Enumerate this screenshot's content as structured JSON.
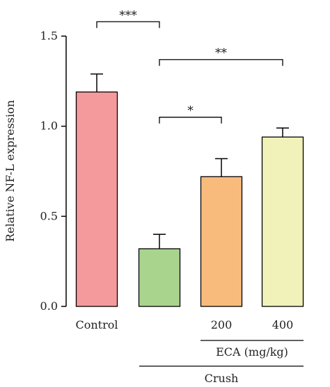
{
  "chart_data": {
    "type": "bar",
    "ylabel": "Relative NF-L expression",
    "ylim": [
      0,
      1.5
    ],
    "yticks": [
      "0.0",
      "0.5",
      "1.0",
      "1.5"
    ],
    "yticks_values": [
      0,
      0.5,
      1.0,
      1.5
    ],
    "categories": [
      "Control",
      "",
      "200",
      "400"
    ],
    "values": [
      1.19,
      0.32,
      0.72,
      0.94
    ],
    "errors": [
      0.1,
      0.08,
      0.1,
      0.05
    ],
    "colors": [
      "#f49a9c",
      "#a9d48e",
      "#f9bb7b",
      "#f1f2b9"
    ],
    "significance": [
      {
        "from": 0,
        "to": 1,
        "label": "***",
        "level": 1.58
      },
      {
        "from": 1,
        "to": 3,
        "label": "**",
        "level": 1.37
      },
      {
        "from": 1,
        "to": 2,
        "label": "*",
        "level": 1.05
      }
    ],
    "groups": [
      {
        "label": "ECA  (mg/kg)",
        "from": 2,
        "to": 3
      },
      {
        "label": "Crush",
        "from": 1,
        "to": 3
      }
    ]
  }
}
